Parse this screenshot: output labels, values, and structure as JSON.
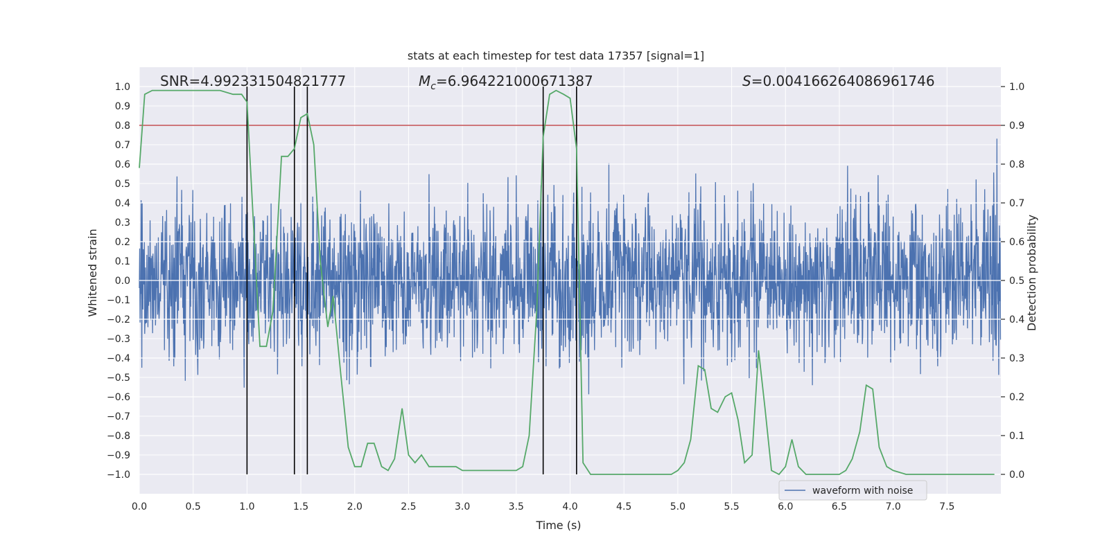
{
  "chart_data": {
    "type": "line",
    "title": "stats at each timestep for test data 17357 [signal=1]",
    "xlabel": "Time (s)",
    "ylabel": "Whitened strain",
    "y2label": "Detection probability",
    "xlim": [
      0.0,
      8.0
    ],
    "ylim": [
      -1.1,
      1.1
    ],
    "y2lim": [
      -0.05,
      1.05
    ],
    "xticks": [
      "0.0",
      "0.5",
      "1.0",
      "1.5",
      "2.0",
      "2.5",
      "3.0",
      "3.5",
      "4.0",
      "4.5",
      "5.0",
      "5.5",
      "6.0",
      "6.5",
      "7.0",
      "7.5"
    ],
    "yticks": [
      "1.0",
      "0.9",
      "0.8",
      "0.7",
      "0.6",
      "0.5",
      "0.4",
      "0.3",
      "0.2",
      "0.1",
      "0.0",
      "−0.1",
      "−0.2",
      "−0.3",
      "−0.4",
      "−0.5",
      "−0.6",
      "−0.7",
      "−0.8",
      "−0.9",
      "−1.0"
    ],
    "y2ticks": [
      "1.0",
      "0.9",
      "0.8",
      "0.7",
      "0.6",
      "0.5",
      "0.4",
      "0.3",
      "0.2",
      "0.1",
      "0.0"
    ],
    "grid": true,
    "legend": {
      "entries": [
        "waveform with noise"
      ],
      "placement": "lower-right"
    },
    "annotations": [
      {
        "text": "SNR=4.992331504821777"
      },
      {
        "prefix": "M",
        "subscript": "c",
        "text": "=6.964221000671387"
      },
      {
        "prefix": "S",
        "text": "=0.004166264086961746"
      }
    ],
    "threshold": {
      "axis": "y2",
      "value": 0.9,
      "color": "#c44e52"
    },
    "vlines_x": [
      1.0,
      1.44,
      1.56,
      3.75,
      4.06
    ],
    "series": [
      {
        "name": "waveform with noise",
        "axis": "y",
        "color": "#4c72b0",
        "kind": "noise",
        "std": 0.2,
        "max_abs": 1.0
      },
      {
        "axis": "y2",
        "color": "#55a868",
        "x": [
          0.0,
          0.05,
          0.12,
          0.25,
          0.5,
          0.75,
          0.87,
          0.95,
          1.0,
          1.12,
          1.18,
          1.24,
          1.32,
          1.38,
          1.44,
          1.5,
          1.56,
          1.62,
          1.68,
          1.75,
          1.8,
          1.87,
          1.94,
          2.0,
          2.06,
          2.12,
          2.18,
          2.25,
          2.31,
          2.37,
          2.44,
          2.5,
          2.56,
          2.62,
          2.69,
          2.75,
          2.87,
          2.94,
          3.0,
          3.12,
          3.25,
          3.37,
          3.44,
          3.5,
          3.56,
          3.62,
          3.69,
          3.75,
          3.81,
          3.87,
          3.94,
          4.0,
          4.06,
          4.12,
          4.19,
          4.25,
          4.5,
          4.75,
          4.94,
          5.0,
          5.06,
          5.12,
          5.19,
          5.25,
          5.31,
          5.37,
          5.44,
          5.5,
          5.56,
          5.62,
          5.69,
          5.75,
          5.81,
          5.87,
          5.94,
          6.0,
          6.06,
          6.12,
          6.19,
          6.25,
          6.31,
          6.37,
          6.44,
          6.5,
          6.56,
          6.62,
          6.69,
          6.75,
          6.81,
          6.87,
          6.94,
          7.0,
          7.12,
          7.5,
          7.94
        ],
        "values": [
          0.79,
          0.98,
          0.99,
          0.99,
          0.99,
          0.99,
          0.98,
          0.98,
          0.96,
          0.33,
          0.33,
          0.42,
          0.82,
          0.82,
          0.84,
          0.92,
          0.93,
          0.85,
          0.55,
          0.38,
          0.46,
          0.26,
          0.07,
          0.02,
          0.02,
          0.08,
          0.08,
          0.02,
          0.01,
          0.04,
          0.17,
          0.05,
          0.03,
          0.05,
          0.02,
          0.02,
          0.02,
          0.02,
          0.01,
          0.01,
          0.01,
          0.01,
          0.01,
          0.01,
          0.02,
          0.1,
          0.42,
          0.87,
          0.98,
          0.99,
          0.98,
          0.97,
          0.84,
          0.03,
          0.0,
          0.0,
          0.0,
          0.0,
          0.0,
          0.01,
          0.03,
          0.09,
          0.28,
          0.27,
          0.17,
          0.16,
          0.2,
          0.21,
          0.14,
          0.03,
          0.05,
          0.32,
          0.17,
          0.01,
          0.0,
          0.02,
          0.09,
          0.02,
          0.0,
          0.0,
          0.0,
          0.0,
          0.0,
          0.0,
          0.01,
          0.04,
          0.11,
          0.23,
          0.22,
          0.07,
          0.02,
          0.01,
          0.0,
          0.0,
          0.0
        ]
      }
    ]
  }
}
